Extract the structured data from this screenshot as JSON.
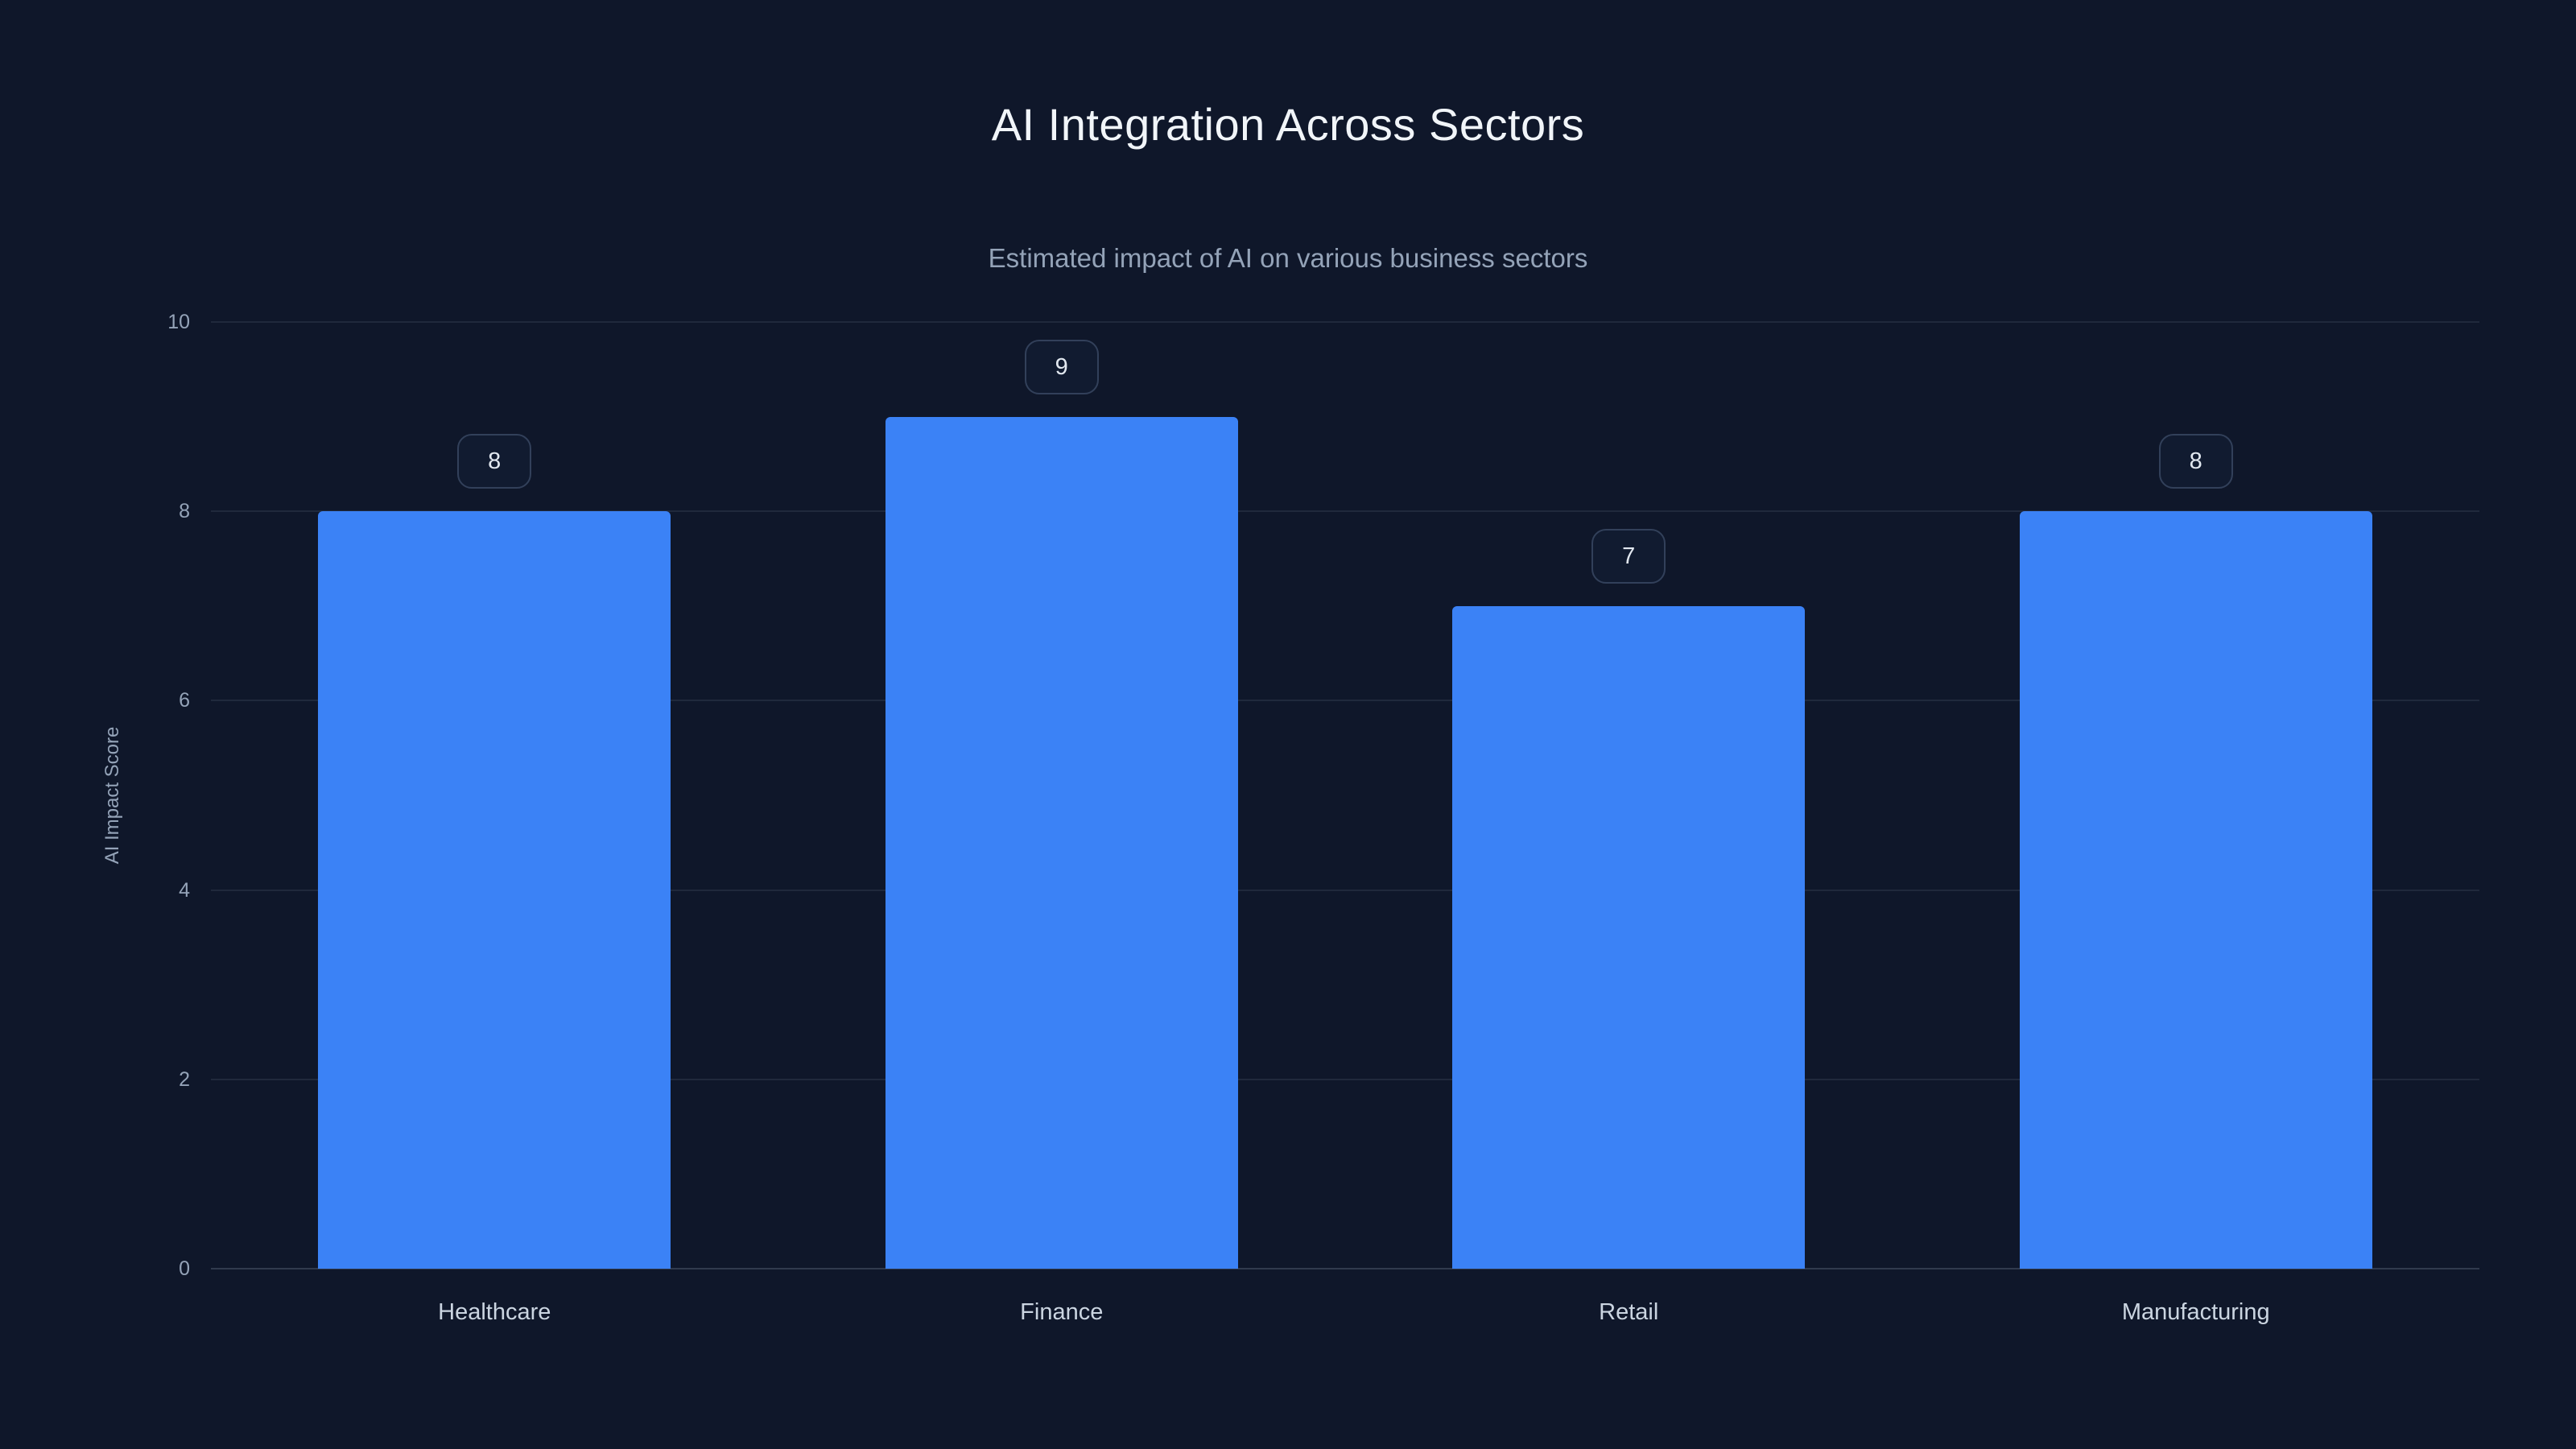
{
  "chart_data": {
    "type": "bar",
    "title": "AI Integration Across Sectors",
    "subtitle": "Estimated impact of AI on various business sectors",
    "categories": [
      "Healthcare",
      "Finance",
      "Retail",
      "Manufacturing"
    ],
    "values": [
      8,
      9,
      7,
      8
    ],
    "xlabel": "",
    "ylabel": "AI Impact Score",
    "ylim": [
      0,
      10
    ],
    "yticks": [
      0,
      2,
      4,
      6,
      8,
      10
    ],
    "grid": "horizontal",
    "legend": "none",
    "bar_color": "#3b82f6",
    "value_labels_shown": true
  },
  "colors": {
    "background": "#0f172a",
    "bar": "#3b82f6",
    "title_text": "#f1f5f9",
    "subtitle_text": "#94a3b8",
    "tick_text": "#94a3b8",
    "category_text": "#cbd5e1",
    "gridline": "#22304a",
    "badge_border": "#32405a",
    "badge_background": "#111b30",
    "badge_text": "#e2e8f0"
  }
}
